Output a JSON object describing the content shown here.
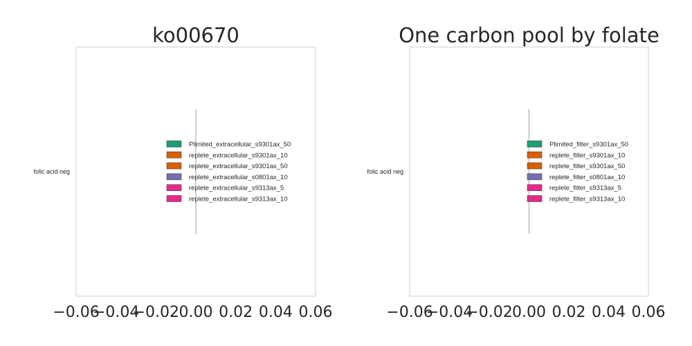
{
  "chart_data": [
    {
      "type": "bar",
      "orientation": "horizontal",
      "title": "ko00670",
      "categories": [
        "folic acid neg"
      ],
      "xlim": [
        -0.06,
        0.06
      ],
      "xticks": [
        "−0.06",
        "−0.04",
        "−0.02",
        "0.00",
        "0.02",
        "0.04",
        "0.06"
      ],
      "grid": false,
      "legend_position": "center-right",
      "series": [
        {
          "name": "Plimited_extracellular_s9301ax_50",
          "color": "#1b9e77",
          "values": [
            0
          ]
        },
        {
          "name": "replete_extracellular_s9301ax_10",
          "color": "#d95f02",
          "values": [
            0
          ]
        },
        {
          "name": "replete_extracellular_s9301ax_50",
          "color": "#d95f02",
          "values": [
            0
          ]
        },
        {
          "name": "replete_extracellular_s0801ax_10",
          "color": "#7570b3",
          "values": [
            0
          ]
        },
        {
          "name": "replete_extracellular_s9313ax_5",
          "color": "#e7298a",
          "values": [
            0
          ]
        },
        {
          "name": "replete_extracellular_s9313ax_10",
          "color": "#e7298a",
          "values": [
            0
          ]
        }
      ]
    },
    {
      "type": "bar",
      "orientation": "horizontal",
      "title": "One carbon pool by folate",
      "categories": [
        "folic acid neg"
      ],
      "xlim": [
        -0.06,
        0.06
      ],
      "xticks": [
        "−0.06",
        "−0.04",
        "−0.02",
        "0.00",
        "0.02",
        "0.04",
        "0.06"
      ],
      "grid": false,
      "legend_position": "center-right",
      "series": [
        {
          "name": "Plimited_filter_s9301ax_50",
          "color": "#1b9e77",
          "values": [
            0
          ]
        },
        {
          "name": "replete_filter_s9301ax_10",
          "color": "#d95f02",
          "values": [
            0
          ]
        },
        {
          "name": "replete_filter_s9301ax_50",
          "color": "#d95f02",
          "values": [
            0
          ]
        },
        {
          "name": "replete_filter_s0801ax_10",
          "color": "#7570b3",
          "values": [
            0
          ]
        },
        {
          "name": "replete_filter_s9313ax_5",
          "color": "#e7298a",
          "values": [
            0
          ]
        },
        {
          "name": "replete_filter_s9313ax_10",
          "color": "#e7298a",
          "values": [
            0
          ]
        }
      ]
    }
  ]
}
